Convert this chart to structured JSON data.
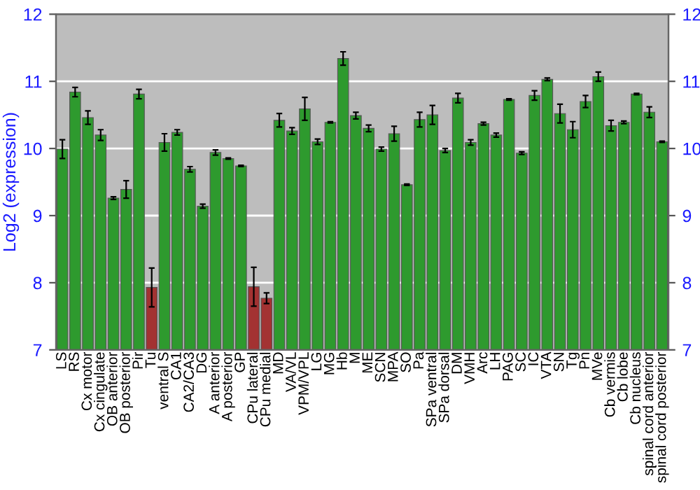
{
  "chart_data": {
    "type": "bar",
    "ylabel": "Log2 (expression)",
    "categories": [
      "LS",
      "RS",
      "Cx motor",
      "Cx cingulate",
      "OB anterior",
      "OB posterior",
      "Pir",
      "Tu",
      "ventral S",
      "CA1",
      "CA2/CA3",
      "DG",
      "A anterior",
      "A posterior",
      "GP",
      "CPu lateral",
      "CPu medial",
      "MD",
      "VA/VL",
      "VPM/VPL",
      "LG",
      "MG",
      "Hb",
      "M",
      "ME",
      "SCN",
      "MPA",
      "SO",
      "Pa",
      "SPa ventral",
      "SPa dorsal",
      "DM",
      "VMH",
      "Arc",
      "LH",
      "PAG",
      "SC",
      "IC",
      "VTA",
      "SN",
      "Tg",
      "Pn",
      "MVe",
      "Cb vermis",
      "Cb lobe",
      "Cb nucleus",
      "spinal cord anterior",
      "spinal cord posterior"
    ],
    "values": [
      9.99,
      10.84,
      10.46,
      10.2,
      9.26,
      9.39,
      10.81,
      7.93,
      10.09,
      10.24,
      9.69,
      9.14,
      9.94,
      9.85,
      9.74,
      7.94,
      7.77,
      10.42,
      10.26,
      10.59,
      10.1,
      10.39,
      11.34,
      10.49,
      10.3,
      9.99,
      10.22,
      9.46,
      10.43,
      10.5,
      9.97,
      10.75,
      10.09,
      10.37,
      10.2,
      10.73,
      9.93,
      10.79,
      11.03,
      10.52,
      10.28,
      10.7,
      11.07,
      10.34,
      10.39,
      10.81,
      10.54,
      10.1
    ],
    "errors": [
      0.14,
      0.07,
      0.1,
      0.08,
      0.02,
      0.13,
      0.07,
      0.29,
      0.13,
      0.04,
      0.04,
      0.03,
      0.04,
      0.01,
      0.01,
      0.29,
      0.08,
      0.1,
      0.05,
      0.17,
      0.04,
      0.01,
      0.1,
      0.05,
      0.05,
      0.03,
      0.11,
      0.01,
      0.11,
      0.14,
      0.03,
      0.07,
      0.04,
      0.02,
      0.03,
      0.01,
      0.02,
      0.07,
      0.02,
      0.14,
      0.12,
      0.09,
      0.07,
      0.08,
      0.02,
      0.01,
      0.08,
      0.01
    ],
    "colors": [
      "#2e9a2e",
      "#2e9a2e",
      "#2e9a2e",
      "#2e9a2e",
      "#2e9a2e",
      "#2e9a2e",
      "#2e9a2e",
      "#a33232",
      "#2e9a2e",
      "#2e9a2e",
      "#2e9a2e",
      "#2e9a2e",
      "#2e9a2e",
      "#2e9a2e",
      "#2e9a2e",
      "#a33232",
      "#a33232",
      "#2e9a2e",
      "#2e9a2e",
      "#2e9a2e",
      "#2e9a2e",
      "#2e9a2e",
      "#2e9a2e",
      "#2e9a2e",
      "#2e9a2e",
      "#2e9a2e",
      "#2e9a2e",
      "#2e9a2e",
      "#2e9a2e",
      "#2e9a2e",
      "#2e9a2e",
      "#2e9a2e",
      "#2e9a2e",
      "#2e9a2e",
      "#2e9a2e",
      "#2e9a2e",
      "#2e9a2e",
      "#2e9a2e",
      "#2e9a2e",
      "#2e9a2e",
      "#2e9a2e",
      "#2e9a2e",
      "#2e9a2e",
      "#2e9a2e",
      "#2e9a2e",
      "#2e9a2e",
      "#2e9a2e",
      "#2e9a2e"
    ],
    "ylim": [
      7,
      12
    ],
    "yticks": [
      7,
      8,
      9,
      10,
      11,
      12
    ],
    "y2lim": [
      7,
      12
    ],
    "y2ticks": [
      7,
      8,
      9,
      10,
      11,
      12
    ],
    "grid": "y",
    "legend": false
  }
}
